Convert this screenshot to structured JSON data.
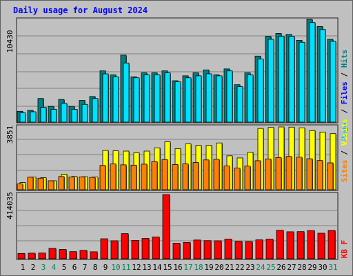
{
  "title": "Daily usage for August 2024",
  "colors": {
    "hits": "#008080",
    "files": "#00e0ff",
    "pages": "#00c0ff",
    "visits": "#ffff00",
    "sites": "#ff8000",
    "kbytes": "#ff0000",
    "weekend_day": "#00805c",
    "weekday": "#000000"
  },
  "chart_data": [
    {
      "type": "bar",
      "panel": "hits-files-pages",
      "categories": [
        "1",
        "2",
        "3",
        "4",
        "5",
        "6",
        "7",
        "8",
        "9",
        "10",
        "11",
        "12",
        "13",
        "14",
        "15",
        "16",
        "17",
        "18",
        "19",
        "20",
        "21",
        "22",
        "23",
        "24",
        "25",
        "26",
        "27",
        "28",
        "29",
        "30",
        "31"
      ],
      "weekend_days": [
        "3",
        "4",
        "10",
        "11",
        "17",
        "18",
        "24",
        "25",
        "31"
      ],
      "max_label": "10430",
      "ylim": [
        0,
        10430
      ],
      "legend": [
        {
          "text": "Pages",
          "color": "#00c0ff"
        },
        {
          "text": "Files",
          "color": "#0000ff"
        },
        {
          "text": "Hits",
          "color": "#008080"
        }
      ],
      "series": [
        {
          "name": "Hits",
          "values": [
            1100,
            1200,
            2400,
            1600,
            2300,
            1600,
            2200,
            2600,
            5200,
            4800,
            6800,
            4600,
            5000,
            5000,
            5200,
            4200,
            4700,
            5000,
            5300,
            4800,
            5400,
            3800,
            5000,
            6700,
            8700,
            9000,
            8900,
            8300,
            10430,
            9700,
            8400
          ]
        },
        {
          "name": "Files",
          "values": [
            950,
            1050,
            1500,
            1300,
            1900,
            1300,
            1800,
            2400,
            4900,
            4600,
            6000,
            4500,
            4800,
            4800,
            5000,
            4100,
            4500,
            4700,
            4900,
            4700,
            5200,
            3600,
            4800,
            6400,
            8400,
            8700,
            8700,
            8100,
            10100,
            9400,
            8200
          ]
        }
      ]
    },
    {
      "type": "bar",
      "panel": "visits-sites",
      "categories": [
        "1",
        "2",
        "3",
        "4",
        "5",
        "6",
        "7",
        "8",
        "9",
        "10",
        "11",
        "12",
        "13",
        "14",
        "15",
        "16",
        "17",
        "18",
        "19",
        "20",
        "21",
        "22",
        "23",
        "24",
        "25",
        "26",
        "27",
        "28",
        "29",
        "30",
        "31"
      ],
      "max_label": "3851",
      "ylim": [
        0,
        3851
      ],
      "legend": [
        {
          "text": "Sites",
          "color": "#ff8000"
        },
        {
          "text": "Visits",
          "color": "#ffff00"
        }
      ],
      "series": [
        {
          "name": "Visits",
          "values": [
            440,
            780,
            740,
            550,
            950,
            810,
            800,
            780,
            2410,
            2390,
            2370,
            2270,
            2370,
            2570,
            2940,
            2520,
            2810,
            2720,
            2720,
            2870,
            2080,
            1950,
            2300,
            3760,
            3820,
            3851,
            3840,
            3800,
            3630,
            3540,
            3440
          ]
        },
        {
          "name": "Sites",
          "values": [
            360,
            770,
            710,
            550,
            810,
            780,
            790,
            760,
            1490,
            1580,
            1530,
            1510,
            1570,
            1730,
            1850,
            1550,
            1590,
            1670,
            1830,
            1870,
            1460,
            1330,
            1450,
            1780,
            1890,
            1970,
            2040,
            2000,
            1900,
            1790,
            1650
          ]
        }
      ]
    },
    {
      "type": "bar",
      "panel": "kbytes",
      "categories": [
        "1",
        "2",
        "3",
        "4",
        "5",
        "6",
        "7",
        "8",
        "9",
        "10",
        "11",
        "12",
        "13",
        "14",
        "15",
        "16",
        "17",
        "18",
        "19",
        "20",
        "21",
        "22",
        "23",
        "24",
        "25",
        "26",
        "27",
        "28",
        "29",
        "30",
        "31"
      ],
      "max_label": "414035",
      "ylim": [
        0,
        414035
      ],
      "legend": [
        {
          "text": "KB F",
          "color": "#ff0000"
        }
      ],
      "series": [
        {
          "name": "KB F",
          "values": [
            34000,
            36000,
            37000,
            67000,
            60000,
            46000,
            54000,
            45000,
            129000,
            116000,
            162000,
            118000,
            131000,
            141000,
            414035,
            100000,
            105000,
            121000,
            117000,
            116000,
            127000,
            112000,
            111000,
            122000,
            127000,
            184000,
            174000,
            175000,
            182000,
            165000,
            183000
          ]
        }
      ]
    }
  ]
}
